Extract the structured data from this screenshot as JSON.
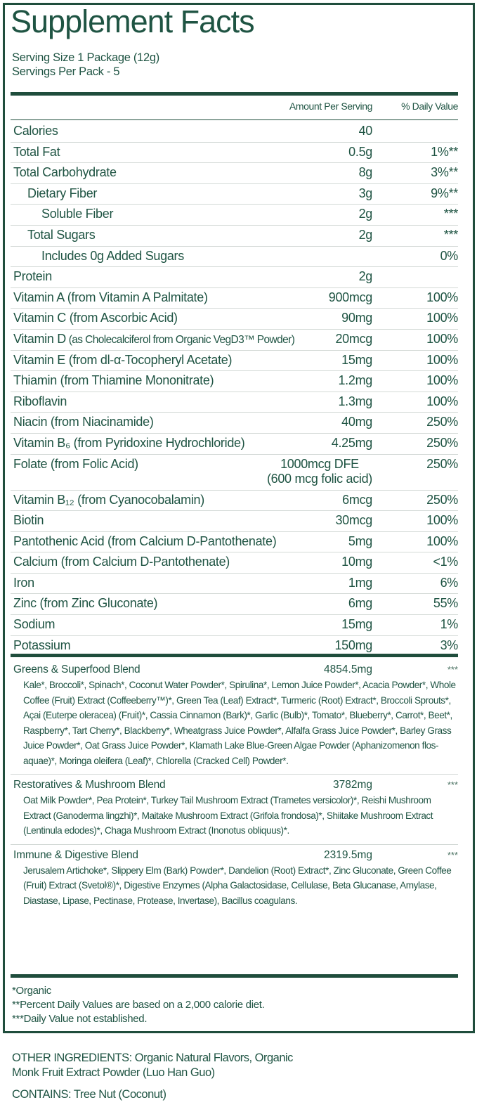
{
  "title": "Supplement Facts",
  "serving_size": "Serving Size 1 Package (12g)",
  "servings_per_pack": "Servings Per Pack - 5",
  "header": {
    "amount": "Amount Per Serving",
    "daily_value": "% Daily Value"
  },
  "nutrients": [
    {
      "label": "Calories",
      "amount": "40",
      "dv": "",
      "indent": 0
    },
    {
      "label": "Total Fat",
      "amount": "0.5g",
      "dv": "1%**",
      "indent": 0
    },
    {
      "label": "Total Carbohydrate",
      "amount": "8g",
      "dv": "3%**",
      "indent": 0
    },
    {
      "label": "Dietary Fiber",
      "amount": "3g",
      "dv": "9%**",
      "indent": 1
    },
    {
      "label": "Soluble Fiber",
      "amount": "2g",
      "dv": "***",
      "indent": 2
    },
    {
      "label": "Total Sugars",
      "amount": "2g",
      "dv": "***",
      "indent": 1
    },
    {
      "label": "Includes 0g Added Sugars",
      "amount": "",
      "dv": "0%",
      "indent": 2
    },
    {
      "label": "Protein",
      "amount": "2g",
      "dv": "",
      "indent": 0
    },
    {
      "label": "Vitamin A (from Vitamin A Palmitate)",
      "amount": "900mcg",
      "dv": "100%",
      "indent": 0
    },
    {
      "label": "Vitamin C (from Ascorbic Acid)",
      "amount": "90mg",
      "dv": "100%",
      "indent": 0
    },
    {
      "label": "Vitamin D",
      "label_small": " (as Cholecalciferol from Organic VegD3™ Powder)",
      "amount": "20mcg",
      "dv": "100%",
      "indent": 0
    },
    {
      "label": "Vitamin E (from dl-α-Tocopheryl Acetate)",
      "amount": "15mg",
      "dv": "100%",
      "indent": 0
    },
    {
      "label": "Thiamin (from Thiamine Mononitrate)",
      "amount": "1.2mg",
      "dv": "100%",
      "indent": 0
    },
    {
      "label": "Riboflavin",
      "amount": "1.3mg",
      "dv": "100%",
      "indent": 0
    },
    {
      "label": "Niacin (from Niacinamide)",
      "amount": "40mg",
      "dv": "250%",
      "indent": 0
    },
    {
      "label": "Vitamin B₆ (from Pyridoxine Hydrochloride)",
      "amount": "4.25mg",
      "dv": "250%",
      "indent": 0
    },
    {
      "label": "Folate (from Folic Acid)",
      "amount": "1000mcg DFE",
      "amount_line2": "(600 mcg folic acid)",
      "dv": "250%",
      "indent": 0
    },
    {
      "label": "Vitamin B₁₂ (from Cyanocobalamin)",
      "amount": "6mcg",
      "dv": "250%",
      "indent": 0
    },
    {
      "label": "Biotin",
      "amount": "30mcg",
      "dv": "100%",
      "indent": 0
    },
    {
      "label": "Pantothenic Acid (from Calcium D-Pantothenate)",
      "amount": "5mg",
      "dv": "100%",
      "indent": 0
    },
    {
      "label": "Calcium (from Calcium D-Pantothenate)",
      "amount": "10mg",
      "dv": "<1%",
      "indent": 0
    },
    {
      "label": "Iron",
      "amount": "1mg",
      "dv": "6%",
      "indent": 0
    },
    {
      "label": "Zinc (from Zinc Gluconate)",
      "amount": "6mg",
      "dv": "55%",
      "indent": 0
    },
    {
      "label": "Sodium",
      "amount": "15mg",
      "dv": "1%",
      "indent": 0
    },
    {
      "label": "Potassium",
      "amount": "150mg",
      "dv": "3%",
      "indent": 0
    }
  ],
  "blends": [
    {
      "name": "Greens & Superfood Blend",
      "amount": "4854.5mg",
      "dv": "***",
      "ingredients": "Kale*, Broccoli*, Spinach*, Coconut Water Powder*, Spirulina*, Lemon Juice Powder*, Acacia Powder*, Whole Coffee (Fruit) Extract (Coffeeberry™)*, Green Tea (Leaf) Extract*, Turmeric (Root) Extract*, Broccoli Sprouts*, Açai (Euterpe oleracea) (Fruit)*, Cassia Cinnamon (Bark)*, Garlic (Bulb)*, Tomato*, Blueberry*, Carrot*, Beet*, Raspberry*, Tart Cherry*, Blackberry*, Wheatgrass Juice Powder*, Alfalfa Grass Juice Powder*, Barley Grass Juice Powder*, Oat Grass Juice Powder*, Klamath Lake Blue-Green Algae Powder (Aphanizomenon flos-aquae)*, Moringa oleifera (Leaf)*, Chlorella (Cracked Cell) Powder*."
    },
    {
      "name": "Restoratives & Mushroom Blend",
      "amount": "3782mg",
      "dv": "***",
      "ingredients": "Oat Milk Powder*, Pea Protein*, Turkey Tail Mushroom Extract (Trametes versicolor)*, Reishi Mushroom Extract (Ganoderma lingzhi)*, Maitake Mushroom Extract (Grifola frondosa)*, Shiitake Mushroom Extract (Lentinula edodes)*, Chaga Mushroom Extract (Inonotus obliquus)*."
    },
    {
      "name": "Immune & Digestive Blend",
      "amount": "2319.5mg",
      "dv": "***",
      "ingredients": "Jerusalem Artichoke*, Slippery Elm (Bark) Powder*, Dandelion (Root) Extract*, Zinc Gluconate, Green Coffee (Fruit) Extract (Svetol®)*, Digestive Enzymes (Alpha Galactosidase, Cellulase, Beta Glucanase, Amylase, Diastase, Lipase, Pectinase, Protease, Invertase), Bacillus coagulans."
    }
  ],
  "footnotes": [
    "*Organic",
    "**Percent Daily Values are based on a 2,000 calorie diet.",
    "***Daily Value not established."
  ],
  "other_ingredients": {
    "line1": "OTHER INGREDIENTS: Organic Natural Flavors, Organic",
    "line2": "Monk Fruit Extract Powder (Luo Han Guo)"
  },
  "contains": "CONTAINS: Tree Nut (Coconut)",
  "colors": {
    "text": "#1f5443",
    "border": "#1f4d3c",
    "separator": "#d3d9d6"
  }
}
